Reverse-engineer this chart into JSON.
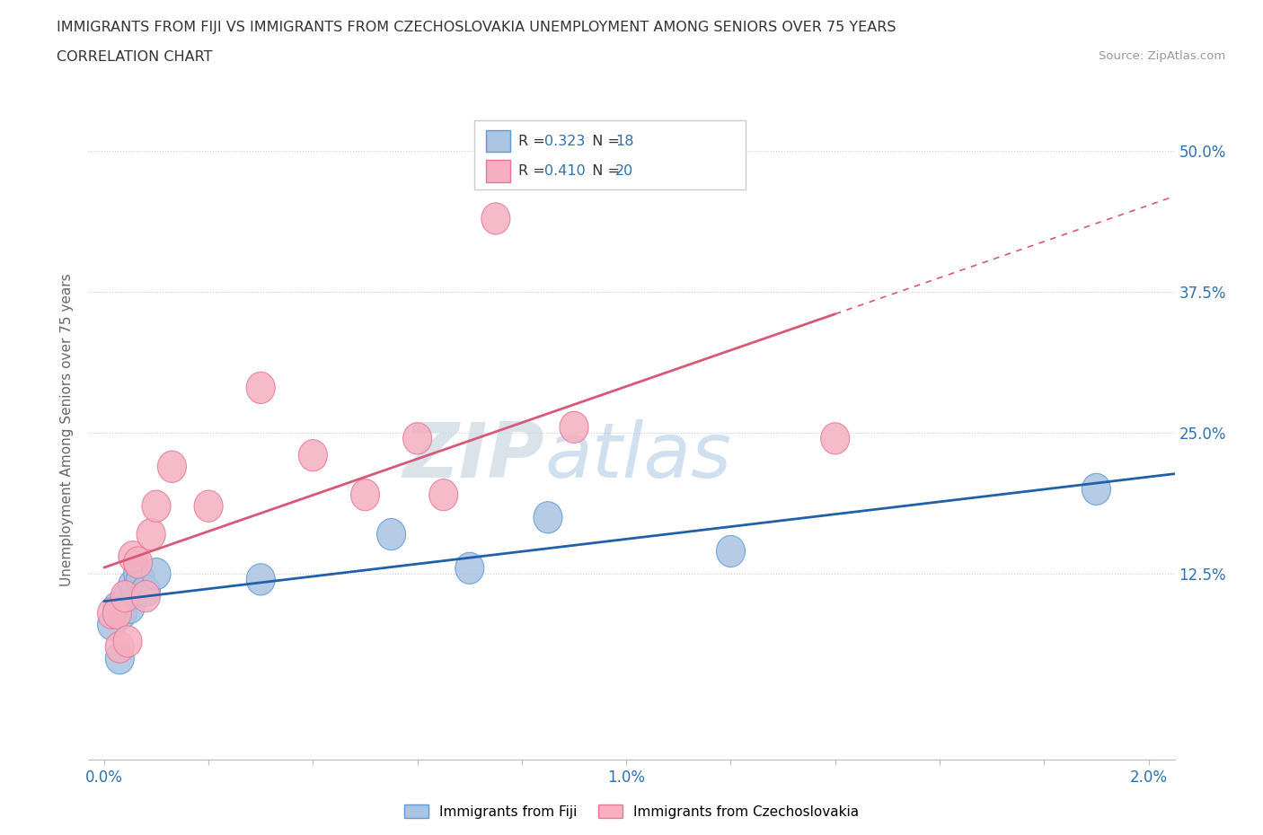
{
  "title_line1": "IMMIGRANTS FROM FIJI VS IMMIGRANTS FROM CZECHOSLOVAKIA UNEMPLOYMENT AMONG SENIORS OVER 75 YEARS",
  "title_line2": "CORRELATION CHART",
  "source": "Source: ZipAtlas.com",
  "ylabel": "Unemployment Among Seniors over 75 years",
  "xlim": [
    -0.0003,
    0.0205
  ],
  "ylim": [
    -0.04,
    0.545
  ],
  "yticks": [
    0.0,
    0.125,
    0.25,
    0.375,
    0.5
  ],
  "ytick_labels": [
    "",
    "12.5%",
    "25.0%",
    "37.5%",
    "50.0%"
  ],
  "xticks": [
    0.0,
    0.002,
    0.004,
    0.006,
    0.008,
    0.01,
    0.012,
    0.014,
    0.016,
    0.018,
    0.02
  ],
  "xtick_labels": [
    "0.0%",
    "",
    "",
    "",
    "",
    "1.0%",
    "",
    "",
    "",
    "",
    "2.0%"
  ],
  "fiji_color": "#aac4e2",
  "fiji_edge_color": "#5b9bd5",
  "czech_color": "#f5afc0",
  "czech_edge_color": "#e8759a",
  "fiji_R": 0.323,
  "fiji_N": 18,
  "czech_R": 0.41,
  "czech_N": 20,
  "trend_fiji_color": "#2060a8",
  "trend_czech_color": "#d85878",
  "watermark_color": "#c8d8ea",
  "fiji_x": [
    0.00015,
    0.00025,
    0.0003,
    0.00035,
    0.00045,
    0.0005,
    0.00055,
    0.0006,
    0.00065,
    0.0007,
    0.0008,
    0.001,
    0.003,
    0.0055,
    0.007,
    0.0085,
    0.012,
    0.019
  ],
  "fiji_y": [
    0.08,
    0.095,
    0.05,
    0.09,
    0.105,
    0.095,
    0.115,
    0.11,
    0.125,
    0.12,
    0.11,
    0.125,
    0.12,
    0.16,
    0.13,
    0.175,
    0.145,
    0.2
  ],
  "czech_x": [
    0.00015,
    0.00025,
    0.0003,
    0.0004,
    0.00045,
    0.00055,
    0.00065,
    0.0008,
    0.0009,
    0.001,
    0.0013,
    0.002,
    0.003,
    0.004,
    0.005,
    0.006,
    0.0065,
    0.0075,
    0.009,
    0.014
  ],
  "czech_y": [
    0.09,
    0.09,
    0.06,
    0.105,
    0.065,
    0.14,
    0.135,
    0.105,
    0.16,
    0.185,
    0.22,
    0.185,
    0.29,
    0.23,
    0.195,
    0.245,
    0.195,
    0.44,
    0.255,
    0.245
  ],
  "legend_fiji_label": "R = 0.323   N = 18",
  "legend_czech_label": "R = 0.410   N = 20",
  "bottom_legend_fiji": "Immigrants from Fiji",
  "bottom_legend_czech": "Immigrants from Czechoslovakia"
}
